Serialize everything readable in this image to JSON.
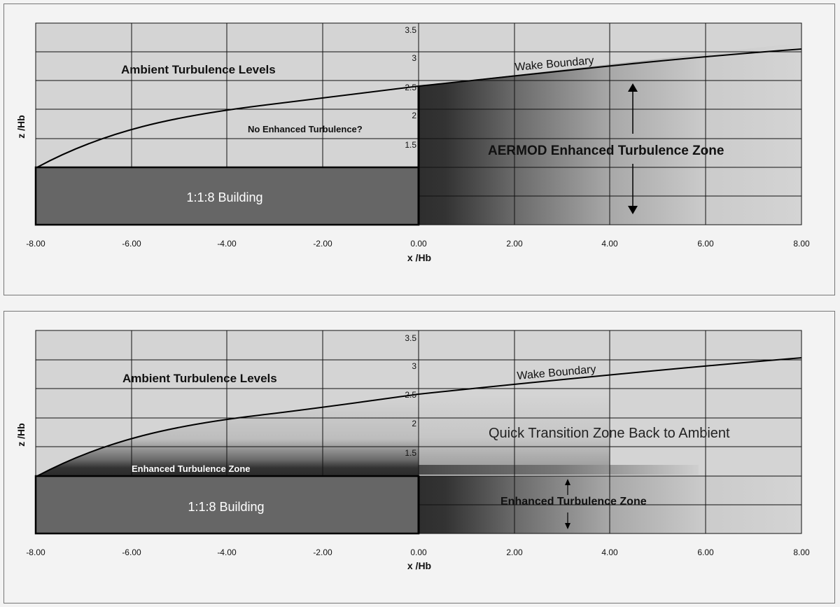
{
  "diagrams": [
    {
      "ytick_labels": [
        "3.5",
        "3",
        "2.5",
        "2",
        "1.5"
      ],
      "xtick_labels": [
        "-8.00",
        "-6.00",
        "-4.00",
        "-2.00",
        "0.00",
        "2.00",
        "4.00",
        "6.00",
        "8.00"
      ],
      "ylabel": "z /Hb",
      "xlabel": "x /Hb",
      "ambient_label": "Ambient Turbulence Levels",
      "wake_label": "Wake Boundary",
      "building_label": "1:1:8 Building",
      "no_enhanced_label": "No Enhanced Turbulence?",
      "zone_label": "AERMOD Enhanced Turbulence Zone"
    },
    {
      "ytick_labels": [
        "3.5",
        "3",
        "2.5",
        "2",
        "1.5"
      ],
      "xtick_labels": [
        "-8.00",
        "-6.00",
        "-4.00",
        "-2.00",
        "0.00",
        "2.00",
        "4.00",
        "6.00",
        "8.00"
      ],
      "ylabel": "z /Hb",
      "xlabel": "x /Hb",
      "ambient_label": "Ambient Turbulence Levels",
      "wake_label": "Wake Boundary",
      "building_label": "1:1:8 Building",
      "roof_zone_label": "Enhanced Turbulence Zone",
      "transition_label": "Quick Transition Zone Back to Ambient",
      "zone_label": "Enhanced Turbulence Zone"
    }
  ],
  "colors": {
    "panel_bg": "#f3f3f3",
    "plot_bg": "#d4d4d4",
    "building": "#666666",
    "zone_dark": "#2e2e2e",
    "grid": "#111111"
  }
}
